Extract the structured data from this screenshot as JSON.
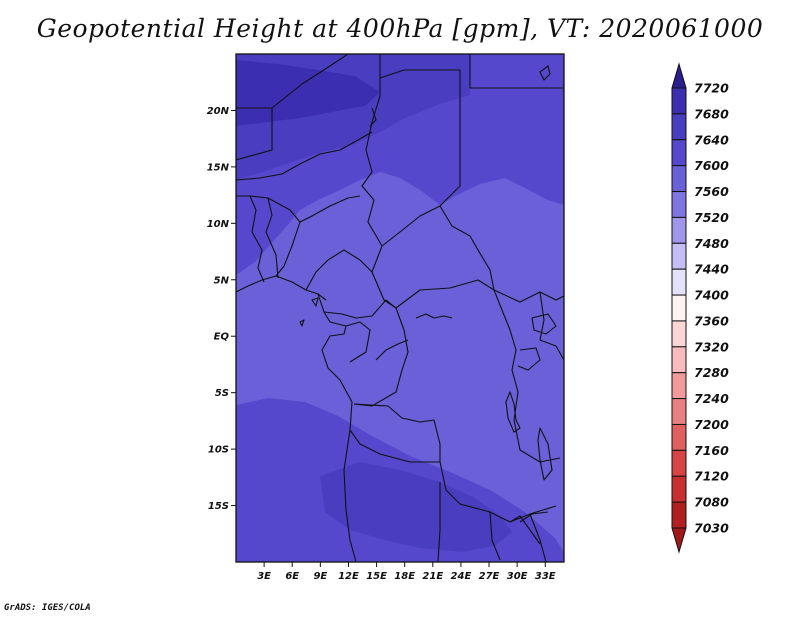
{
  "title": "Geopotential Height at 400hPa [gpm], VT: 2020061000",
  "credit": "GrADS: IGES/COLA",
  "map": {
    "lon_range": [
      0,
      35
    ],
    "lat_range": [
      -20,
      25
    ],
    "lat_ticks": [
      {
        "value": 20,
        "label": "20N"
      },
      {
        "value": 15,
        "label": "15N"
      },
      {
        "value": 10,
        "label": "10N"
      },
      {
        "value": 5,
        "label": "5N"
      },
      {
        "value": 0,
        "label": "EQ"
      },
      {
        "value": -5,
        "label": "5S"
      },
      {
        "value": -10,
        "label": "10S"
      },
      {
        "value": -15,
        "label": "15S"
      }
    ],
    "lon_ticks": [
      {
        "value": 3,
        "label": "3E"
      },
      {
        "value": 6,
        "label": "6E"
      },
      {
        "value": 9,
        "label": "9E"
      },
      {
        "value": 12,
        "label": "12E"
      },
      {
        "value": 15,
        "label": "15E"
      },
      {
        "value": 18,
        "label": "18E"
      },
      {
        "value": 21,
        "label": "21E"
      },
      {
        "value": 24,
        "label": "24E"
      },
      {
        "value": 27,
        "label": "27E"
      },
      {
        "value": 30,
        "label": "30E"
      },
      {
        "value": 33,
        "label": "33E"
      }
    ],
    "field_colors": {
      "level_7560": "#6a60d8",
      "level_7600": "#5548cc",
      "level_7640": "#4a3ec0",
      "level_7680": "#3c2eb0"
    }
  },
  "colorbar": {
    "unit": "gpm",
    "levels": [
      {
        "label": "7720",
        "color": "#2a1d8e"
      },
      {
        "label": "7680",
        "color": "#3c2eb0"
      },
      {
        "label": "7640",
        "color": "#4a3ec0"
      },
      {
        "label": "7600",
        "color": "#5548cc"
      },
      {
        "label": "7560",
        "color": "#6a60d8"
      },
      {
        "label": "7520",
        "color": "#7e74e2"
      },
      {
        "label": "7480",
        "color": "#a096ec"
      },
      {
        "label": "7440",
        "color": "#c4bef4"
      },
      {
        "label": "7400",
        "color": "#e4e2fa"
      },
      {
        "label": "7360",
        "color": "#fff2f2"
      },
      {
        "label": "7320",
        "color": "#fcd6d6"
      },
      {
        "label": "7280",
        "color": "#f8bcbc"
      },
      {
        "label": "7240",
        "color": "#f09a9a"
      },
      {
        "label": "7200",
        "color": "#e88080"
      },
      {
        "label": "7160",
        "color": "#e06060"
      },
      {
        "label": "7120",
        "color": "#d84444"
      },
      {
        "label": "7080",
        "color": "#c83030"
      },
      {
        "label": "7030",
        "color": "#b02020"
      }
    ],
    "bottom_color": "#a01818"
  }
}
